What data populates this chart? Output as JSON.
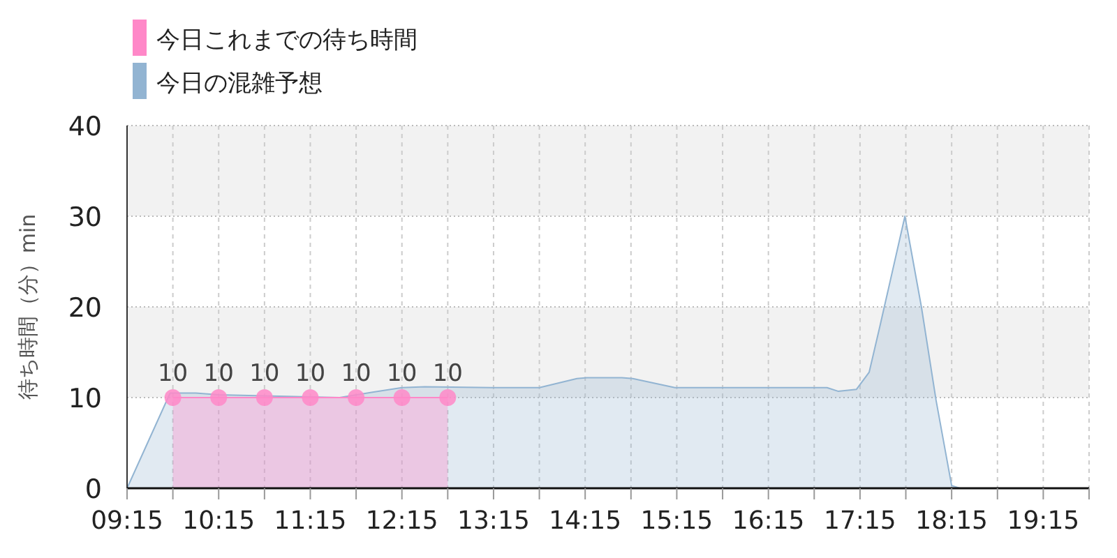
{
  "chart_data": {
    "type": "area",
    "ylabel": "待ち時間（分）min",
    "x": [
      9.75,
      10.25,
      10.75,
      11.25,
      11.75,
      12.25,
      12.75
    ],
    "series": [
      {
        "name": "今日これまでの待ち時間",
        "color": "#ff88c8",
        "marker": "circle",
        "values": [
          10,
          10,
          10,
          10,
          10,
          10,
          10
        ],
        "value_labels": [
          "10",
          "10",
          "10",
          "10",
          "10",
          "10",
          "10"
        ]
      },
      {
        "name": "今日の混雑予想",
        "color": "#92b4d2",
        "marker": "none",
        "x": [
          9.25,
          9.72,
          10.0,
          10.25,
          11.57,
          11.93,
          12.25,
          12.5,
          13.24,
          13.75,
          14.16,
          14.27,
          14.65,
          14.77,
          15.23,
          16.89,
          17.01,
          17.21,
          17.35,
          17.47,
          17.74,
          17.92,
          18.08,
          18.25,
          18.34,
          18.75,
          19.75
        ],
        "values": [
          0,
          10.5,
          10.5,
          10.3,
          10.0,
          10.6,
          11.1,
          11.2,
          11.1,
          11.1,
          12.1,
          12.2,
          12.2,
          12.1,
          11.1,
          11.1,
          10.7,
          10.9,
          12.8,
          18,
          30,
          20,
          9.7,
          0.3,
          0,
          0,
          0
        ]
      }
    ],
    "xlim": [
      9.25,
      19.75
    ],
    "xticks": [
      {
        "value": 9.25,
        "label": "09:15"
      },
      {
        "value": 9.75,
        "label": null
      },
      {
        "value": 10.25,
        "label": "10:15"
      },
      {
        "value": 10.75,
        "label": null
      },
      {
        "value": 11.25,
        "label": "11:15"
      },
      {
        "value": 11.75,
        "label": null
      },
      {
        "value": 12.25,
        "label": "12:15"
      },
      {
        "value": 12.75,
        "label": null
      },
      {
        "value": 13.25,
        "label": "13:15"
      },
      {
        "value": 13.75,
        "label": null
      },
      {
        "value": 14.25,
        "label": "14:15"
      },
      {
        "value": 14.75,
        "label": null
      },
      {
        "value": 15.25,
        "label": "15:15"
      },
      {
        "value": 15.75,
        "label": null
      },
      {
        "value": 16.25,
        "label": "16:15"
      },
      {
        "value": 16.75,
        "label": null
      },
      {
        "value": 17.25,
        "label": "17:15"
      },
      {
        "value": 17.75,
        "label": null
      },
      {
        "value": 18.25,
        "label": "18:15"
      },
      {
        "value": 18.75,
        "label": null
      },
      {
        "value": 19.25,
        "label": "19:15"
      },
      {
        "value": 19.75,
        "label": null
      }
    ],
    "ylim": [
      0,
      40
    ],
    "yticks": [
      0,
      10,
      20,
      30,
      40
    ],
    "bands": [
      {
        "axis": "y",
        "from": 10,
        "to": 20,
        "color": "#f2f2f2"
      },
      {
        "axis": "y",
        "from": 30,
        "to": 40,
        "color": "#f2f2f2"
      }
    ],
    "grid": true,
    "legend": "top left"
  }
}
